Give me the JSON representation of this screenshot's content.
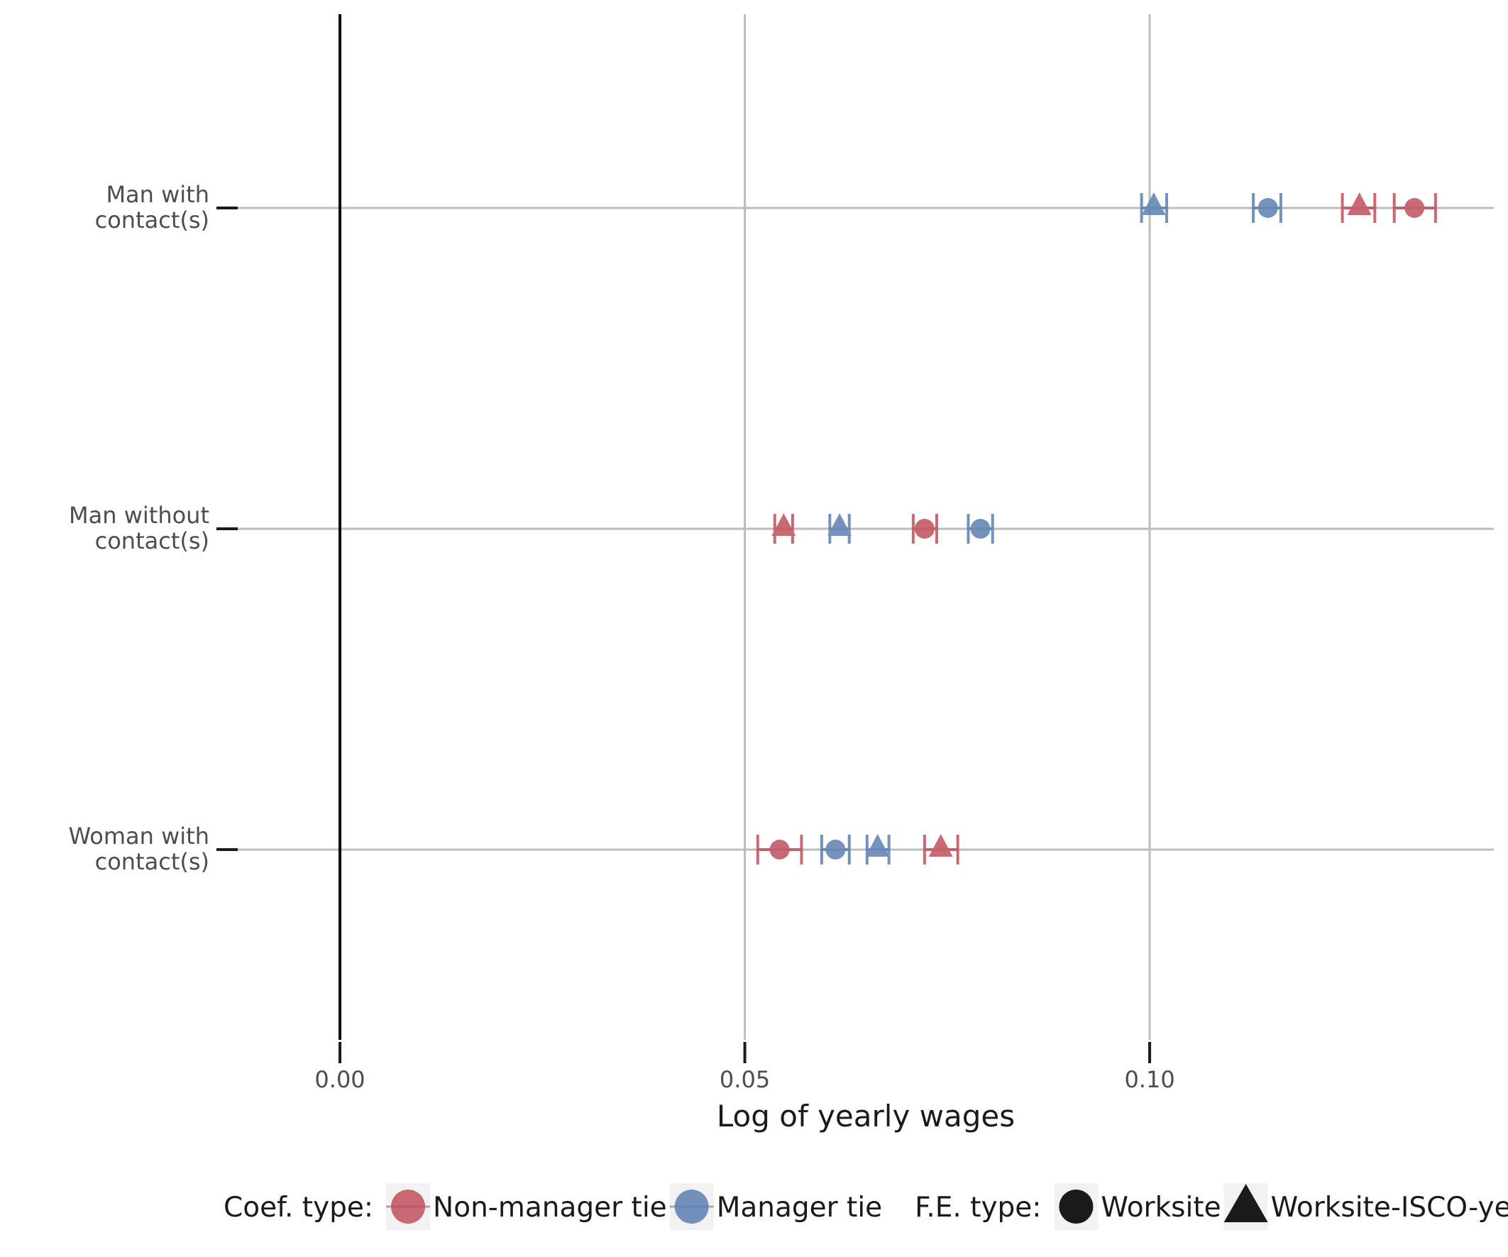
{
  "chart_data": {
    "type": "scatter",
    "xlabel": "Log of yearly wages",
    "xlim": [
      -0.0135,
      0.1425
    ],
    "x_ticks": [
      {
        "value": 0.0,
        "label": "0.00"
      },
      {
        "value": 0.05,
        "label": "0.05"
      },
      {
        "value": 0.1,
        "label": "0.10"
      }
    ],
    "zero_line": 0,
    "grid": true,
    "legend_position": "bottom",
    "categories": [
      {
        "id": "man_with",
        "lines": [
          "Man with",
          "contact(s)"
        ]
      },
      {
        "id": "man_without",
        "lines": [
          "Man without",
          "contact(s)"
        ]
      },
      {
        "id": "woman_with",
        "lines": [
          "Woman with",
          "contact(s)"
        ]
      }
    ],
    "colors": {
      "non_manager": "#c0505c",
      "manager": "#5b7fb2"
    },
    "legend": {
      "coef_title": "Coef. type:",
      "coef_items": [
        {
          "key": "non_manager",
          "label": "Non-manager tie"
        },
        {
          "key": "manager",
          "label": "Manager tie"
        }
      ],
      "fe_title": "F.E. type:",
      "fe_items": [
        {
          "shape": "circle",
          "label": "Worksite"
        },
        {
          "shape": "triangle",
          "label": "Worksite-ISCO-year"
        }
      ]
    },
    "points": [
      {
        "category": "man_with",
        "coef": "manager",
        "fe": "triangle",
        "est": 0.1005,
        "lo": 0.099,
        "hi": 0.1021
      },
      {
        "category": "man_with",
        "coef": "manager",
        "fe": "circle",
        "est": 0.1146,
        "lo": 0.1128,
        "hi": 0.1162
      },
      {
        "category": "man_with",
        "coef": "non_manager",
        "fe": "triangle",
        "est": 0.1259,
        "lo": 0.1238,
        "hi": 0.1278
      },
      {
        "category": "man_with",
        "coef": "non_manager",
        "fe": "circle",
        "est": 0.1327,
        "lo": 0.1302,
        "hi": 0.1353
      },
      {
        "category": "man_without",
        "coef": "non_manager",
        "fe": "triangle",
        "est": 0.0548,
        "lo": 0.0537,
        "hi": 0.0559
      },
      {
        "category": "man_without",
        "coef": "manager",
        "fe": "triangle",
        "est": 0.0617,
        "lo": 0.0605,
        "hi": 0.0629
      },
      {
        "category": "man_without",
        "coef": "non_manager",
        "fe": "circle",
        "est": 0.0722,
        "lo": 0.0708,
        "hi": 0.0737
      },
      {
        "category": "man_without",
        "coef": "manager",
        "fe": "circle",
        "est": 0.0791,
        "lo": 0.0776,
        "hi": 0.0806
      },
      {
        "category": "woman_with",
        "coef": "non_manager",
        "fe": "circle",
        "est": 0.0543,
        "lo": 0.0516,
        "hi": 0.057
      },
      {
        "category": "woman_with",
        "coef": "manager",
        "fe": "circle",
        "est": 0.0612,
        "lo": 0.0595,
        "hi": 0.0629
      },
      {
        "category": "woman_with",
        "coef": "manager",
        "fe": "triangle",
        "est": 0.0664,
        "lo": 0.0651,
        "hi": 0.0678
      },
      {
        "category": "woman_with",
        "coef": "non_manager",
        "fe": "triangle",
        "est": 0.0742,
        "lo": 0.0722,
        "hi": 0.0763
      }
    ]
  }
}
